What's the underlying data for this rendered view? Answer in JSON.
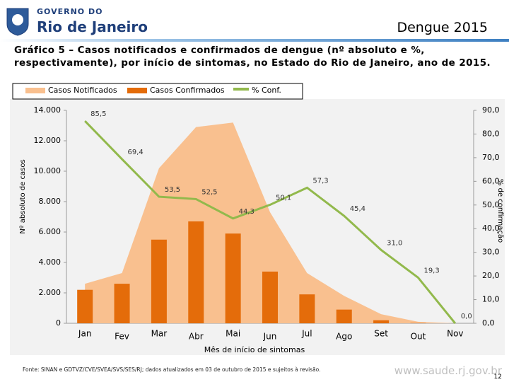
{
  "header": {
    "brand_top": "GOVERNO DO",
    "brand": "Rio de Janeiro",
    "title": "Dengue 2015"
  },
  "chart_data": {
    "type": "combo",
    "title": "Gráfico 5 – Casos notificados e confirmados de dengue (nº absoluto e %, respectivamente), por início de sintomas, no Estado do Rio de Janeiro, ano de 2015.",
    "x_label": "Mês de início de sintomas",
    "y_label": "Nº absoluto de casos",
    "y2_label": "% de confirmação",
    "categories": [
      "Jan",
      "Fev",
      "Mar",
      "Abr",
      "Mai",
      "Jun",
      "Jul",
      "Ago",
      "Set",
      "Out",
      "Nov"
    ],
    "series": [
      {
        "name": "Casos Notificados",
        "type": "area",
        "color": "#f9c08f",
        "values": [
          2600,
          3300,
          10200,
          12900,
          13200,
          7300,
          3300,
          1800,
          600,
          100,
          0
        ]
      },
      {
        "name": "Casos Confirmados",
        "type": "bar",
        "color": "#e46c0a",
        "values": [
          2200,
          2600,
          5500,
          6700,
          5900,
          3400,
          1900,
          900,
          200,
          20,
          0
        ]
      },
      {
        "name": "% Conf.",
        "type": "line",
        "color": "#92b94c",
        "axis": "y2",
        "values": [
          85.5,
          69.4,
          53.5,
          52.5,
          44.3,
          50.1,
          57.3,
          45.4,
          31.0,
          19.3,
          0.0
        ],
        "value_labels": [
          "85,5",
          "69,4",
          "53,5",
          "52,5",
          "44,3",
          "50,1",
          "57,3",
          "45,4",
          "31,0",
          "19,3",
          "0,0"
        ]
      }
    ],
    "ylim": [
      0,
      14000
    ],
    "yticks": [
      0,
      {
        "value": 2000,
        "label": "2.000"
      },
      {
        "value": 4000,
        "label": "4.000"
      },
      {
        "value": 6000,
        "label": "6.000"
      },
      {
        "value": 8000,
        "label": "8.000"
      },
      {
        "value": 10000,
        "label": "10.000"
      },
      {
        "value": 12000,
        "label": "12.000"
      },
      {
        "value": 14000,
        "label": "14.000"
      }
    ],
    "y2lim": [
      0,
      90
    ],
    "y2ticks": [
      {
        "value": 0,
        "label": "0,0"
      },
      {
        "value": 10,
        "label": "10,0"
      },
      {
        "value": 20,
        "label": "20,0"
      },
      {
        "value": 30,
        "label": "30,0"
      },
      {
        "value": 40,
        "label": "40,0"
      },
      {
        "value": 50,
        "label": "50,0"
      },
      {
        "value": 60,
        "label": "60,0"
      },
      {
        "value": 70,
        "label": "70,0"
      },
      {
        "value": 80,
        "label": "80,0"
      },
      {
        "value": 90,
        "label": "90,0"
      }
    ],
    "grid": false,
    "legend": "top"
  },
  "footer": {
    "source": "Fonte: SINAN e GDTVZ/CVE/SVEA/SVS/SES/RJ; dados atualizados em 03 de outubro de 2015 e sujeitos à revisão.",
    "url": "www.saude.rj.gov.br",
    "page": "12"
  }
}
